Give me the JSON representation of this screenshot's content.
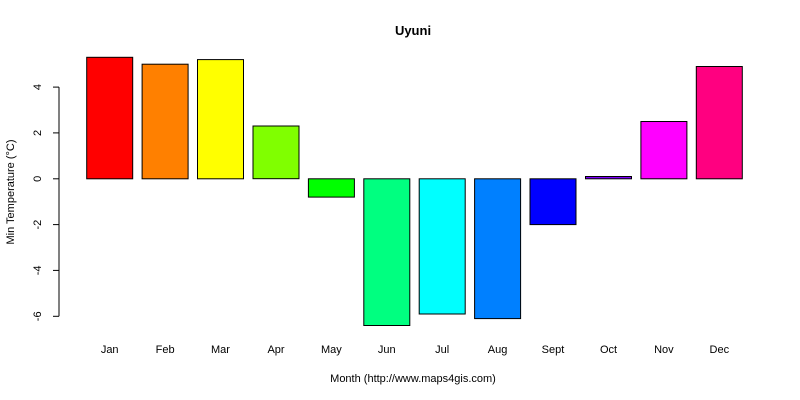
{
  "chart_data": {
    "type": "bar",
    "title": "Uyuni",
    "xlabel": "Month (http://www.maps4gis.com)",
    "ylabel": "Min Temperature (°C)",
    "ylim": [
      -6.6,
      5.4
    ],
    "y_ticks": [
      -6,
      -4,
      -2,
      0,
      2,
      4
    ],
    "categories": [
      "Jan",
      "Feb",
      "Mar",
      "Apr",
      "May",
      "Jun",
      "Jul",
      "Aug",
      "Sept",
      "Oct",
      "Nov",
      "Dec"
    ],
    "values": [
      5.3,
      5.0,
      5.2,
      2.3,
      -0.8,
      -6.4,
      -5.9,
      -6.1,
      -2.0,
      0.1,
      2.5,
      4.9
    ],
    "colors": [
      "#FF0000",
      "#FF8000",
      "#FFFF00",
      "#80FF00",
      "#00FF00",
      "#00FF80",
      "#00FFFF",
      "#0080FF",
      "#0000FF",
      "#8000FF",
      "#FF00FF",
      "#FF0080"
    ],
    "grid": false,
    "legend": "none"
  }
}
